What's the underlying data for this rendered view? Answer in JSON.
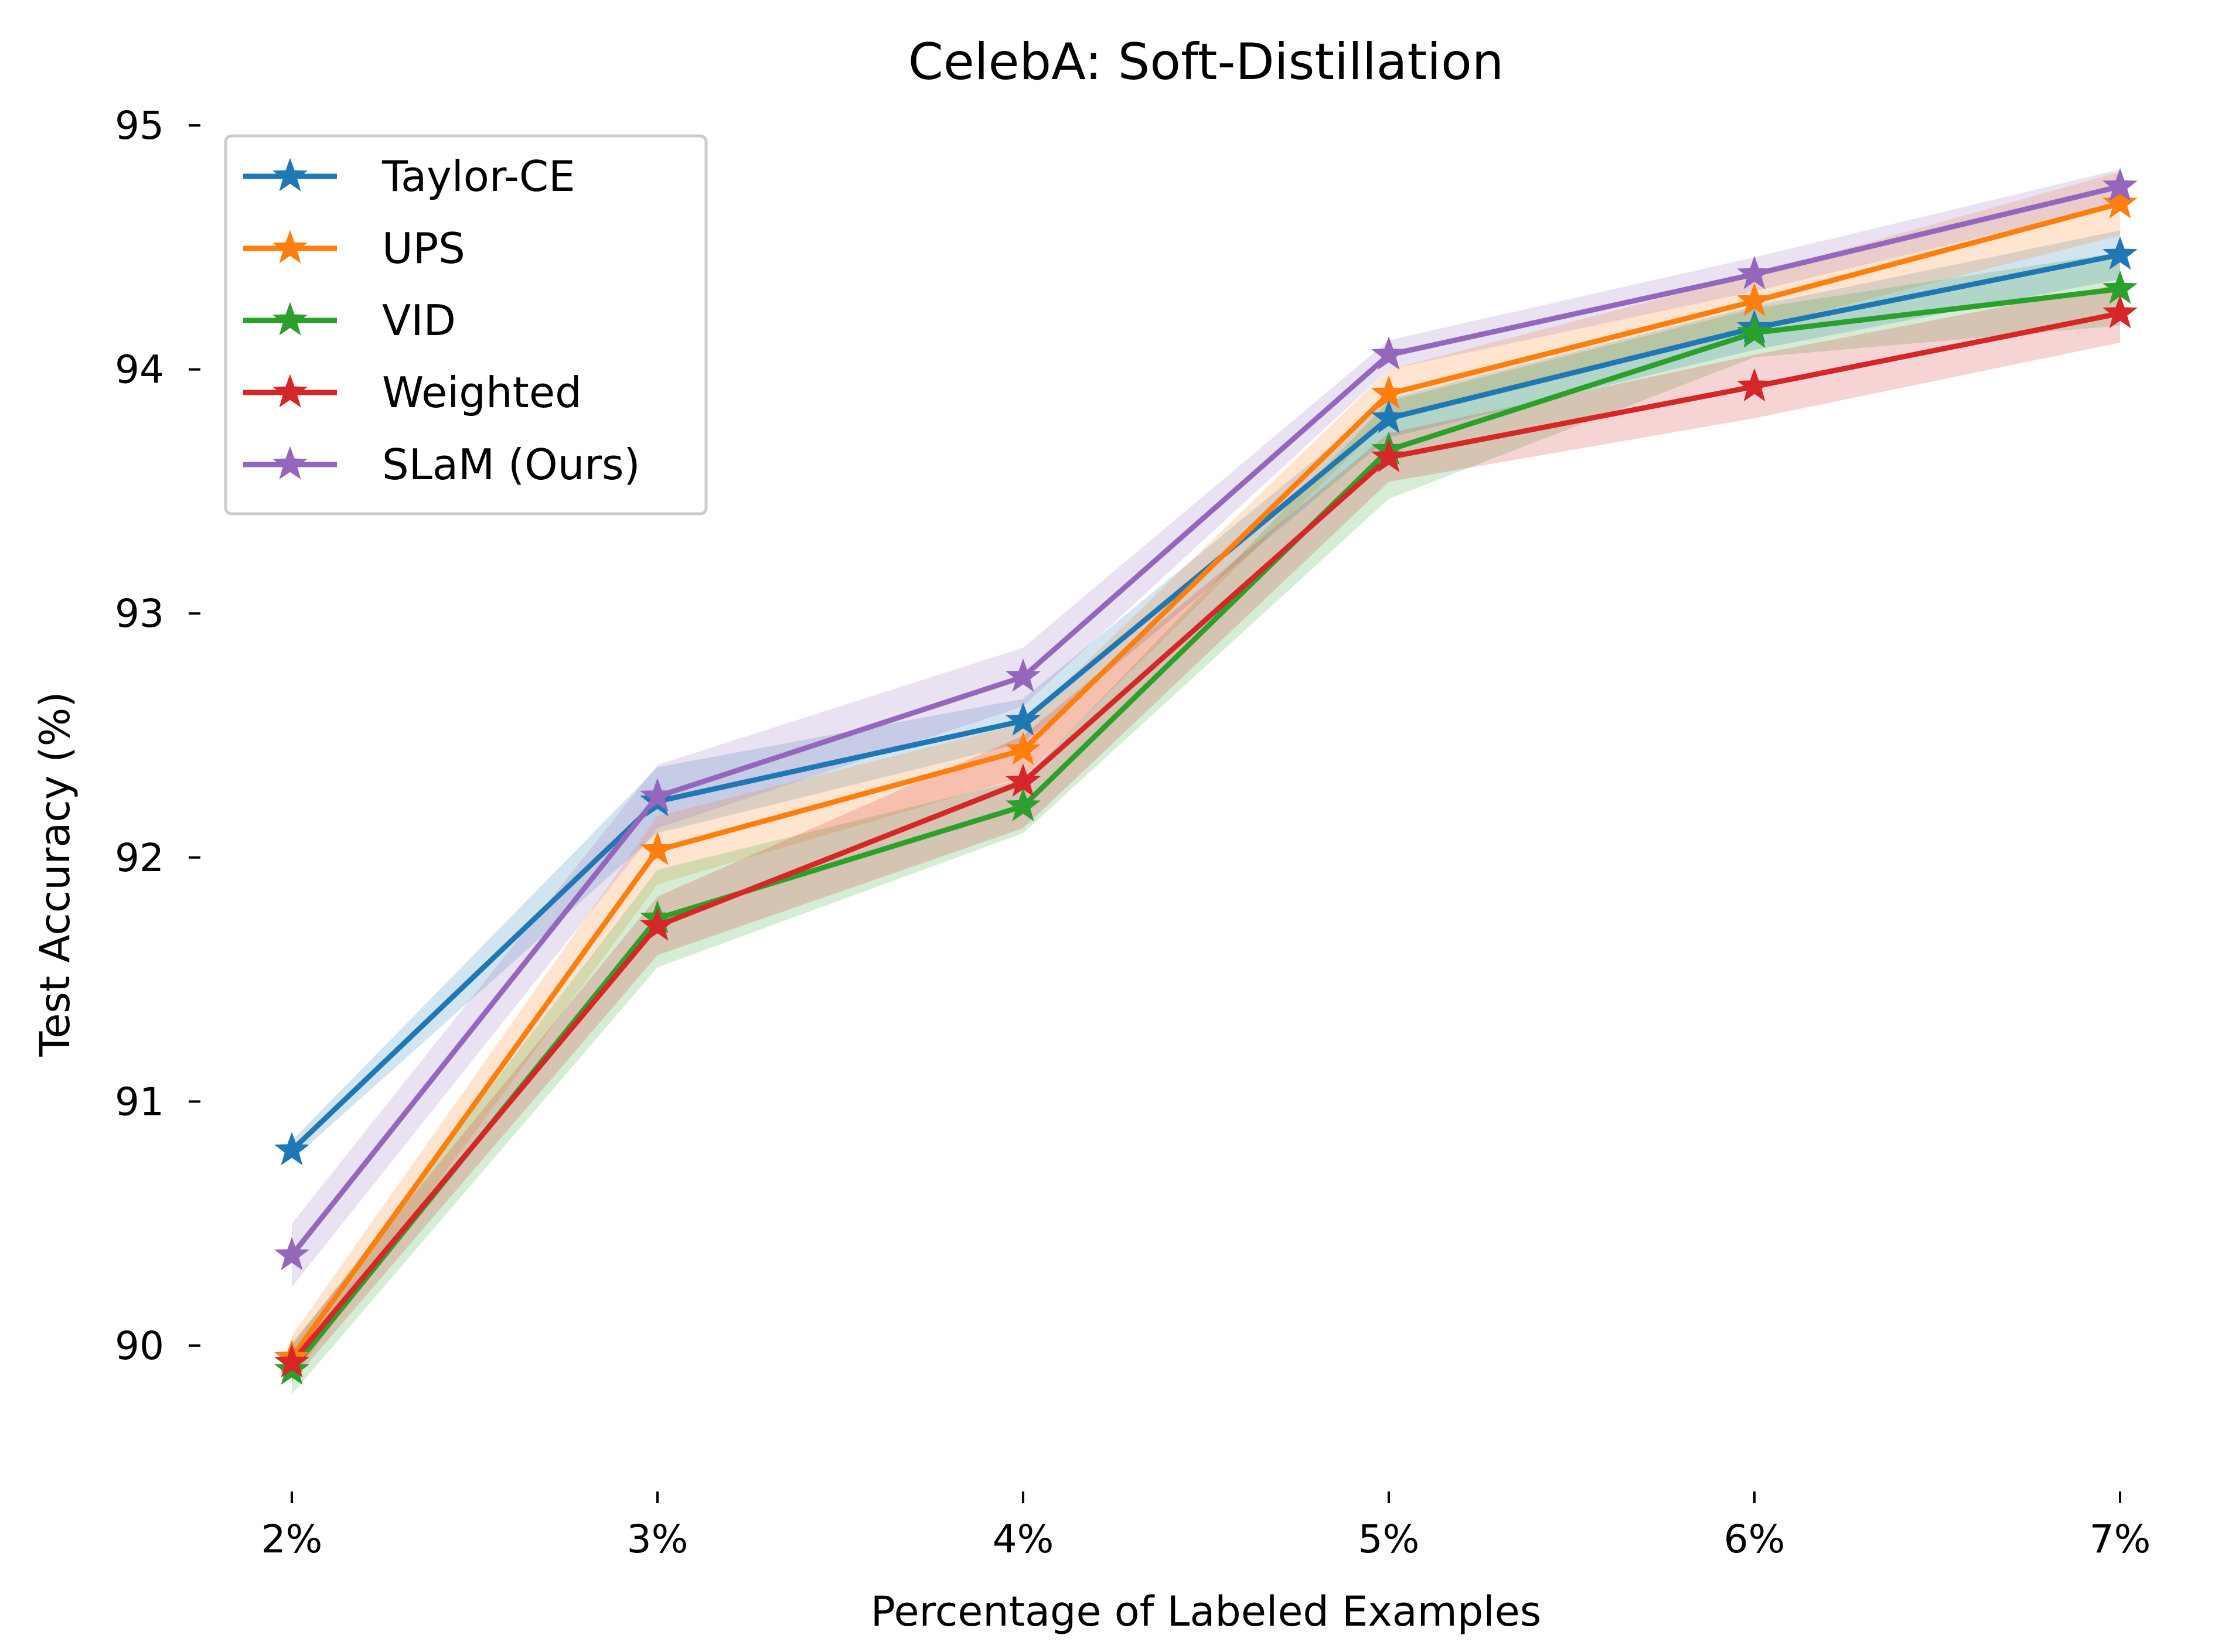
{
  "chart_data": {
    "type": "line",
    "title": "CelebA: Soft-Distillation",
    "xlabel": "Percentage of Labeled Examples",
    "ylabel": "Test Accuracy (%)",
    "categories": [
      "2%",
      "3%",
      "4%",
      "5%",
      "6%",
      "7%"
    ],
    "ylim": [
      89.57,
      95.25
    ],
    "yticks": [
      90,
      91,
      92,
      93,
      94,
      95
    ],
    "grid": false,
    "legend_position": "top-left",
    "series": [
      {
        "name": "Taylor-CE",
        "color": "#1f77b4",
        "values": [
          90.8,
          92.23,
          92.56,
          93.8,
          94.17,
          94.47
        ],
        "lower": [
          90.76,
          92.1,
          92.47,
          93.72,
          94.08,
          94.37
        ],
        "upper": [
          90.84,
          92.37,
          92.65,
          93.88,
          94.26,
          94.57
        ]
      },
      {
        "name": "UPS",
        "color": "#ff7f0e",
        "values": [
          89.95,
          92.03,
          92.44,
          93.9,
          94.28,
          94.68
        ],
        "lower": [
          89.86,
          91.89,
          92.33,
          93.8,
          94.17,
          94.55
        ],
        "upper": [
          90.04,
          92.17,
          92.55,
          94.0,
          94.39,
          94.81
        ]
      },
      {
        "name": "VID",
        "color": "#2ca02c",
        "values": [
          89.9,
          91.75,
          92.21,
          93.67,
          94.15,
          94.33
        ],
        "lower": [
          89.8,
          91.55,
          92.1,
          93.47,
          94.05,
          94.18
        ],
        "upper": [
          90.0,
          91.95,
          92.32,
          93.87,
          94.25,
          94.48
        ]
      },
      {
        "name": "Weighted",
        "color": "#d62728",
        "values": [
          89.93,
          91.72,
          92.31,
          93.64,
          93.93,
          94.23
        ],
        "lower": [
          89.85,
          91.6,
          92.12,
          93.54,
          93.8,
          94.11
        ],
        "upper": [
          90.01,
          91.84,
          92.5,
          93.74,
          94.06,
          94.35
        ]
      },
      {
        "name": "SLaM (Ours)",
        "color": "#9467bd",
        "values": [
          90.37,
          92.25,
          92.74,
          94.06,
          94.39,
          94.75
        ],
        "lower": [
          90.24,
          92.12,
          92.62,
          94.0,
          94.32,
          94.68
        ],
        "upper": [
          90.5,
          92.38,
          92.86,
          94.12,
          94.46,
          94.82
        ]
      }
    ]
  }
}
